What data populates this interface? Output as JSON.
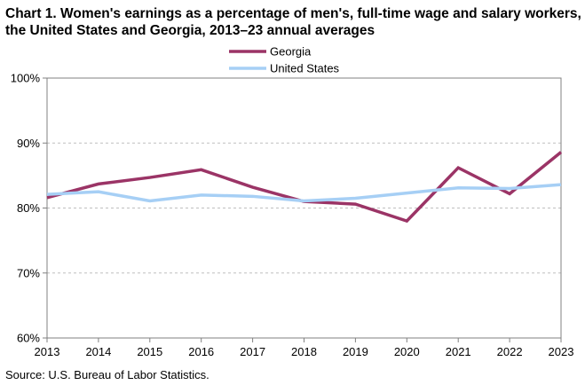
{
  "title": "Chart 1. Women's earnings as a percentage of men's, full-time wage and salary workers, the United States and Georgia, 2013–23 annual averages",
  "source": "Source: U.S. Bureau of Labor Statistics.",
  "chart_data": {
    "type": "line",
    "title": "Chart 1. Women's earnings as a percentage of men's, full-time wage and salary workers, the United States and Georgia, 2013–23 annual averages",
    "x": [
      "2013",
      "2014",
      "2015",
      "2016",
      "2017",
      "2018",
      "2019",
      "2020",
      "2021",
      "2022",
      "2023"
    ],
    "y_ticks": [
      "60%",
      "70%",
      "80%",
      "90%",
      "100%"
    ],
    "ylim": [
      60,
      100
    ],
    "grid": "horizontal dashed",
    "legend": "top-center",
    "series": [
      {
        "name": "Georgia",
        "color": "#9b3466",
        "values": [
          81.6,
          83.7,
          84.7,
          85.9,
          83.2,
          81.0,
          80.6,
          78.0,
          86.2,
          82.2,
          88.6
        ]
      },
      {
        "name": "United States",
        "color": "#a6cff5",
        "values": [
          82.1,
          82.5,
          81.1,
          82.0,
          81.8,
          81.1,
          81.5,
          82.3,
          83.1,
          83.0,
          83.6
        ]
      }
    ]
  }
}
